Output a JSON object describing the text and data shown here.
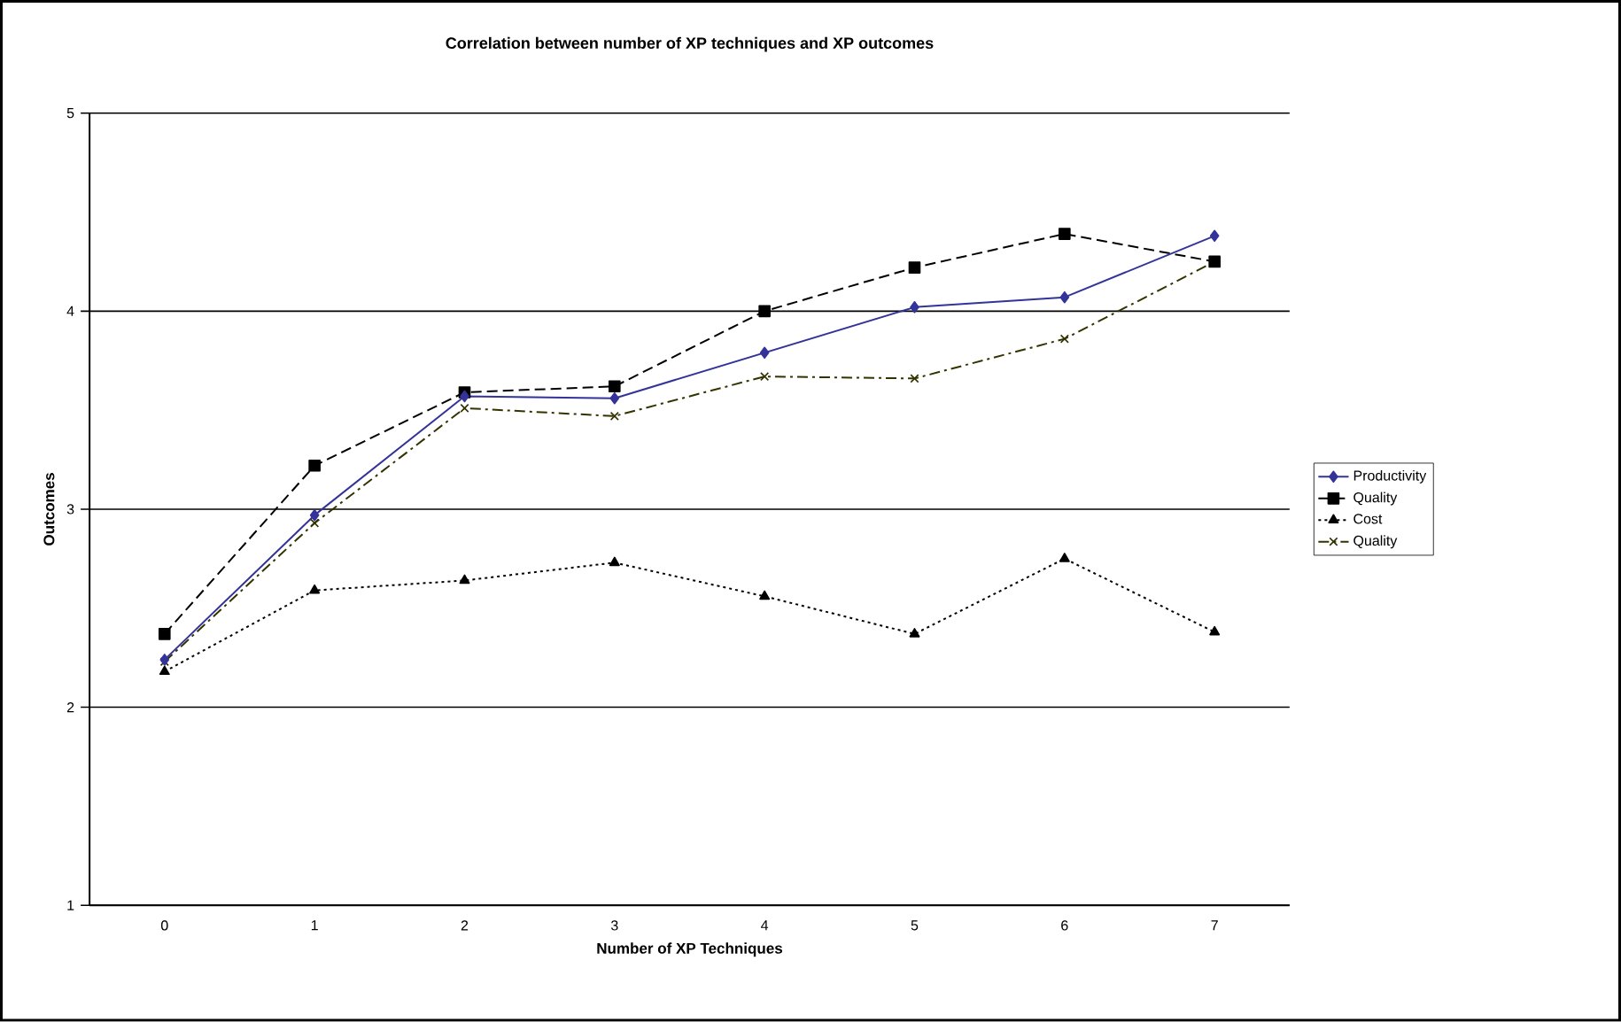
{
  "chart_data": {
    "type": "line",
    "title": "Correlation between number of XP techniques and XP outcomes",
    "xlabel": "Number of XP Techniques",
    "ylabel": "Outcomes",
    "categories": [
      "0",
      "1",
      "2",
      "3",
      "4",
      "5",
      "6",
      "7"
    ],
    "ylim": [
      1,
      5
    ],
    "yticks": [
      1,
      2,
      3,
      4,
      5
    ],
    "grid": "y",
    "legend": "right",
    "series": [
      {
        "name": "Productivity",
        "color": "#333399",
        "marker": "diamond",
        "line_style": "solid",
        "values": [
          2.24,
          2.97,
          3.57,
          3.56,
          3.79,
          4.02,
          4.07,
          4.38
        ]
      },
      {
        "name": "Quality",
        "color": "#000000",
        "marker": "square",
        "line_style": "dashed",
        "values": [
          2.37,
          3.22,
          3.59,
          3.62,
          4.0,
          4.22,
          4.39,
          4.25
        ]
      },
      {
        "name": "Cost",
        "color": "#000000",
        "marker": "triangle",
        "line_style": "dotted",
        "values": [
          2.18,
          2.59,
          2.64,
          2.73,
          2.56,
          2.37,
          2.75,
          2.38
        ]
      },
      {
        "name": "Quality",
        "color": "#333300",
        "marker": "cross",
        "line_style": "dashdotted",
        "values": [
          2.23,
          2.93,
          3.51,
          3.47,
          3.67,
          3.66,
          3.86,
          4.25
        ]
      }
    ]
  }
}
